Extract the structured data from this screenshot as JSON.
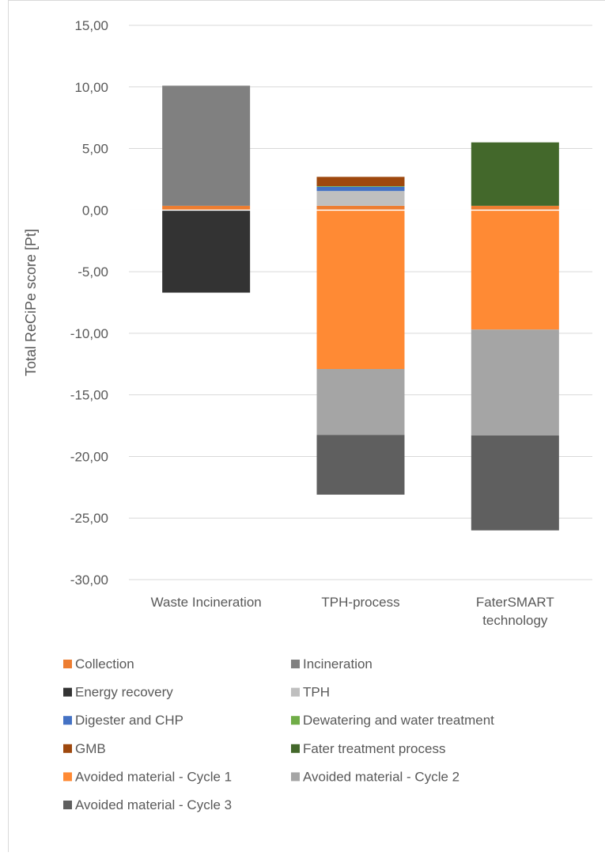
{
  "chart_data": {
    "type": "bar",
    "stacked": true,
    "title": "",
    "xlabel": "",
    "ylabel": "Total ReCiPe score [Pt]",
    "ylim": [
      -30,
      15
    ],
    "ytick_step": 5,
    "ytick_labels": [
      "15,00",
      "10,00",
      "5,00",
      "0,00",
      "-5,00",
      "-10,00",
      "-15,00",
      "-20,00",
      "-25,00",
      "-30,00"
    ],
    "categories": [
      [
        "Waste Incineration"
      ],
      [
        "TPH-process"
      ],
      [
        "FaterSMART",
        "technology"
      ]
    ],
    "grid": true,
    "legend_position": "bottom",
    "series": [
      {
        "name": "Collection",
        "color": "#ED7D31",
        "values": [
          0.35,
          0.35,
          0.35
        ]
      },
      {
        "name": "Incineration",
        "color": "#808080",
        "values": [
          9.75,
          0,
          0
        ]
      },
      {
        "name": "Energy recovery",
        "color": "#333333",
        "values": [
          -6.7,
          0,
          0
        ]
      },
      {
        "name": "TPH",
        "color": "#BFBFBF",
        "values": [
          0,
          1.2,
          0
        ]
      },
      {
        "name": "Digester and CHP",
        "color": "#4472C4",
        "values": [
          0,
          0.35,
          0
        ]
      },
      {
        "name": "Dewatering and water treatment",
        "color": "#70AD47",
        "values": [
          0,
          0.05,
          0
        ]
      },
      {
        "name": "GMB",
        "color": "#9E480E",
        "values": [
          0,
          0.75,
          0
        ]
      },
      {
        "name": "Fater treatment process",
        "color": "#43682B",
        "values": [
          0,
          0,
          5.15
        ]
      },
      {
        "name": "Avoided material - Cycle 1",
        "color": "#FF8A34",
        "values": [
          0,
          -12.9,
          -9.7
        ]
      },
      {
        "name": "Avoided material - Cycle 2",
        "color": "#A5A5A5",
        "values": [
          0,
          -5.35,
          -8.6
        ]
      },
      {
        "name": "Avoided material - Cycle 3",
        "color": "#5F5F5F",
        "values": [
          0,
          -4.85,
          -7.7
        ]
      }
    ]
  }
}
